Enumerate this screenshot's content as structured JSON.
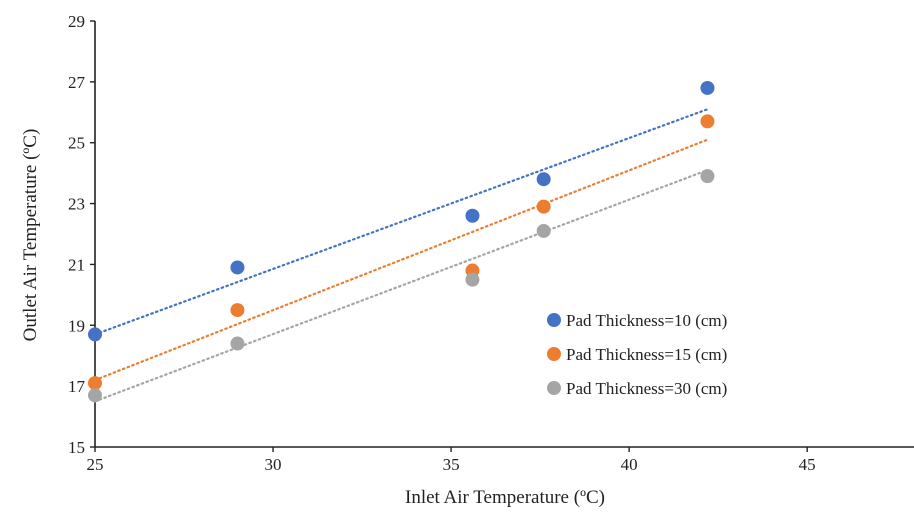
{
  "chart_data": {
    "type": "scatter",
    "title": "",
    "xlabel": "Inlet Air Temperature (ºC)",
    "ylabel": "Outlet Air Temperature (ºC)",
    "xlim": [
      25,
      48
    ],
    "ylim": [
      15,
      29
    ],
    "xticks": [
      25,
      30,
      35,
      40,
      45
    ],
    "yticks": [
      15,
      17,
      19,
      21,
      23,
      25,
      27,
      29
    ],
    "grid": false,
    "legend_position": "right",
    "trendlines": "linear, dotted",
    "series": [
      {
        "name": "Pad Thickness=10 (cm)",
        "color": "#4472C4",
        "points": [
          [
            25,
            18.7
          ],
          [
            29,
            20.9
          ],
          [
            35.6,
            22.6
          ],
          [
            37.6,
            23.8
          ],
          [
            42.2,
            26.8
          ]
        ],
        "trend": [
          [
            25,
            18.7
          ],
          [
            42.2,
            26.1
          ]
        ]
      },
      {
        "name": "Pad Thickness=15 (cm)",
        "color": "#ED7D31",
        "points": [
          [
            25,
            17.1
          ],
          [
            29,
            19.5
          ],
          [
            35.6,
            20.8
          ],
          [
            37.6,
            22.9
          ],
          [
            42.2,
            25.7
          ]
        ],
        "trend": [
          [
            25,
            17.2
          ],
          [
            42.2,
            25.1
          ]
        ]
      },
      {
        "name": "Pad Thickness=30 (cm)",
        "color": "#A5A5A5",
        "points": [
          [
            25,
            16.7
          ],
          [
            29,
            18.4
          ],
          [
            35.6,
            20.5
          ],
          [
            37.6,
            22.1
          ],
          [
            42.2,
            23.9
          ]
        ],
        "trend": [
          [
            25,
            16.5
          ],
          [
            42.2,
            24.1
          ]
        ]
      }
    ]
  }
}
